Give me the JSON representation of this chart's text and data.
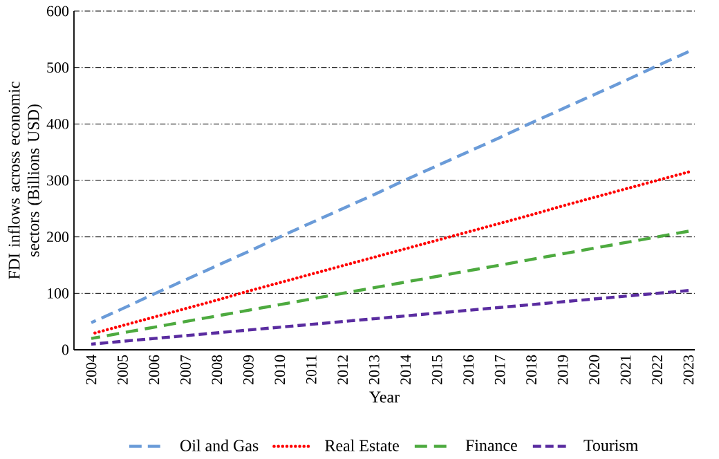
{
  "chart_data": {
    "type": "line",
    "xlabel": "Year",
    "ylabel": "FDI inflows across economic sectors (Billions USD)",
    "categories": [
      "2004",
      "2005",
      "2006",
      "2007",
      "2008",
      "2009",
      "2010",
      "2011",
      "2012",
      "2013",
      "2014",
      "2015",
      "2016",
      "2017",
      "2018",
      "2019",
      "2020",
      "2021",
      "2022",
      "2023"
    ],
    "series": [
      {
        "name": "Oil and Gas",
        "color": "#6a9bd8",
        "line_style": "dashed",
        "values": [
          48,
          73,
          99,
          124,
          149,
          174,
          200,
          225,
          250,
          275,
          301,
          326,
          351,
          376,
          402,
          427,
          452,
          477,
          503,
          528
        ]
      },
      {
        "name": "Real Estate",
        "color": "#ff0000",
        "line_style": "dotted",
        "values": [
          28,
          43,
          58,
          73,
          88,
          104,
          119,
          134,
          149,
          164,
          179,
          194,
          209,
          224,
          239,
          255,
          270,
          285,
          300,
          315
        ]
      },
      {
        "name": "Finance",
        "color": "#4daa3f",
        "line_style": "dashed",
        "values": [
          20,
          30,
          40,
          50,
          60,
          70,
          80,
          90,
          100,
          110,
          120,
          130,
          140,
          150,
          160,
          170,
          180,
          190,
          200,
          210
        ]
      },
      {
        "name": "Tourism",
        "color": "#5a2ca0",
        "line_style": "dashed",
        "values": [
          10,
          15,
          20,
          25,
          30,
          35,
          40,
          45,
          50,
          55,
          60,
          65,
          70,
          75,
          80,
          85,
          90,
          95,
          100,
          105
        ]
      }
    ],
    "ylim": [
      0,
      600
    ],
    "yticks": [
      0,
      100,
      200,
      300,
      400,
      500,
      600
    ],
    "grid": "y",
    "legend": "bottom",
    "marker": "none"
  }
}
